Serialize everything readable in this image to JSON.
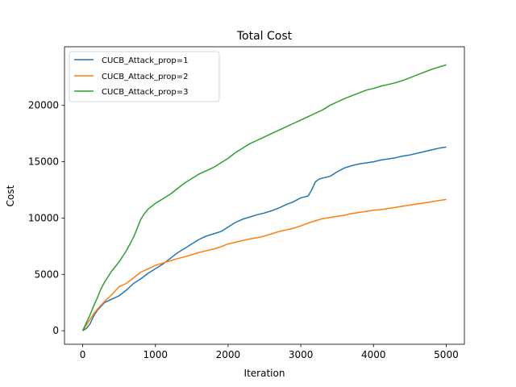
{
  "chart_data": {
    "type": "line",
    "title": "Total Cost",
    "xlabel": "Iteration",
    "ylabel": "Cost",
    "xlim": [
      -250,
      5250
    ],
    "ylim": [
      -1200,
      25200
    ],
    "xticks": [
      0,
      1000,
      2000,
      3000,
      4000,
      5000
    ],
    "yticks": [
      0,
      5000,
      10000,
      15000,
      20000
    ],
    "grid": false,
    "legend_position": "top-left",
    "series": [
      {
        "name": "CUCB_Attack_prop=1",
        "color": "#1f77b4",
        "x": [
          0,
          50,
          100,
          150,
          200,
          300,
          400,
          500,
          600,
          700,
          800,
          900,
          1000,
          1100,
          1200,
          1300,
          1400,
          1500,
          1600,
          1700,
          1800,
          1900,
          2000,
          2100,
          2200,
          2300,
          2400,
          2500,
          2600,
          2700,
          2800,
          2900,
          3000,
          3100,
          3150,
          3200,
          3250,
          3300,
          3400,
          3500,
          3600,
          3700,
          3800,
          3900,
          4000,
          4100,
          4200,
          4300,
          4400,
          4500,
          4600,
          4700,
          4800,
          4900,
          5000
        ],
        "y": [
          0,
          200,
          600,
          1300,
          1800,
          2500,
          2800,
          3100,
          3600,
          4200,
          4600,
          5100,
          5500,
          5900,
          6400,
          6900,
          7300,
          7700,
          8100,
          8400,
          8600,
          8800,
          9200,
          9600,
          9900,
          10100,
          10300,
          10450,
          10650,
          10900,
          11200,
          11450,
          11800,
          11950,
          12500,
          13200,
          13450,
          13550,
          13700,
          14100,
          14450,
          14650,
          14800,
          14900,
          15000,
          15150,
          15250,
          15350,
          15500,
          15600,
          15750,
          15900,
          16050,
          16200,
          16300
        ]
      },
      {
        "name": "CUCB_Attack_prop=2",
        "color": "#ff7f0e",
        "x": [
          0,
          50,
          100,
          150,
          200,
          300,
          400,
          500,
          600,
          700,
          800,
          900,
          1000,
          1100,
          1200,
          1300,
          1400,
          1500,
          1600,
          1700,
          1800,
          1900,
          2000,
          2100,
          2200,
          2300,
          2400,
          2500,
          2600,
          2700,
          2800,
          2900,
          3000,
          3100,
          3200,
          3300,
          3400,
          3500,
          3600,
          3700,
          3800,
          3900,
          4000,
          4100,
          4200,
          4300,
          4400,
          4500,
          4600,
          4700,
          4800,
          4900,
          5000
        ],
        "y": [
          0,
          500,
          1000,
          1500,
          1900,
          2600,
          3200,
          3900,
          4200,
          4700,
          5200,
          5500,
          5800,
          6000,
          6200,
          6400,
          6550,
          6750,
          6950,
          7100,
          7250,
          7450,
          7700,
          7850,
          8000,
          8150,
          8250,
          8400,
          8600,
          8800,
          8950,
          9100,
          9300,
          9550,
          9750,
          9950,
          10050,
          10150,
          10250,
          10400,
          10500,
          10600,
          10700,
          10750,
          10850,
          10950,
          11050,
          11150,
          11250,
          11350,
          11450,
          11550,
          11650
        ]
      },
      {
        "name": "CUCB_Attack_prop=3",
        "color": "#2ca02c",
        "x": [
          0,
          50,
          100,
          150,
          200,
          250,
          300,
          400,
          500,
          600,
          700,
          800,
          850,
          900,
          1000,
          1100,
          1200,
          1300,
          1400,
          1500,
          1600,
          1700,
          1800,
          1900,
          2000,
          2100,
          2200,
          2300,
          2400,
          2500,
          2600,
          2700,
          2800,
          2900,
          3000,
          3100,
          3200,
          3300,
          3400,
          3500,
          3600,
          3700,
          3800,
          3900,
          4000,
          4100,
          4200,
          4300,
          4400,
          4500,
          4600,
          4700,
          4800,
          4900,
          5000
        ],
        "y": [
          0,
          700,
          1400,
          2200,
          2900,
          3700,
          4300,
          5300,
          6100,
          7100,
          8300,
          9900,
          10400,
          10800,
          11300,
          11700,
          12100,
          12600,
          13100,
          13500,
          13900,
          14200,
          14500,
          14900,
          15300,
          15800,
          16200,
          16600,
          16900,
          17200,
          17500,
          17800,
          18100,
          18400,
          18700,
          19000,
          19300,
          19600,
          20000,
          20300,
          20600,
          20850,
          21100,
          21350,
          21500,
          21700,
          21850,
          22000,
          22200,
          22450,
          22700,
          22950,
          23200,
          23400,
          23600
        ]
      }
    ]
  }
}
